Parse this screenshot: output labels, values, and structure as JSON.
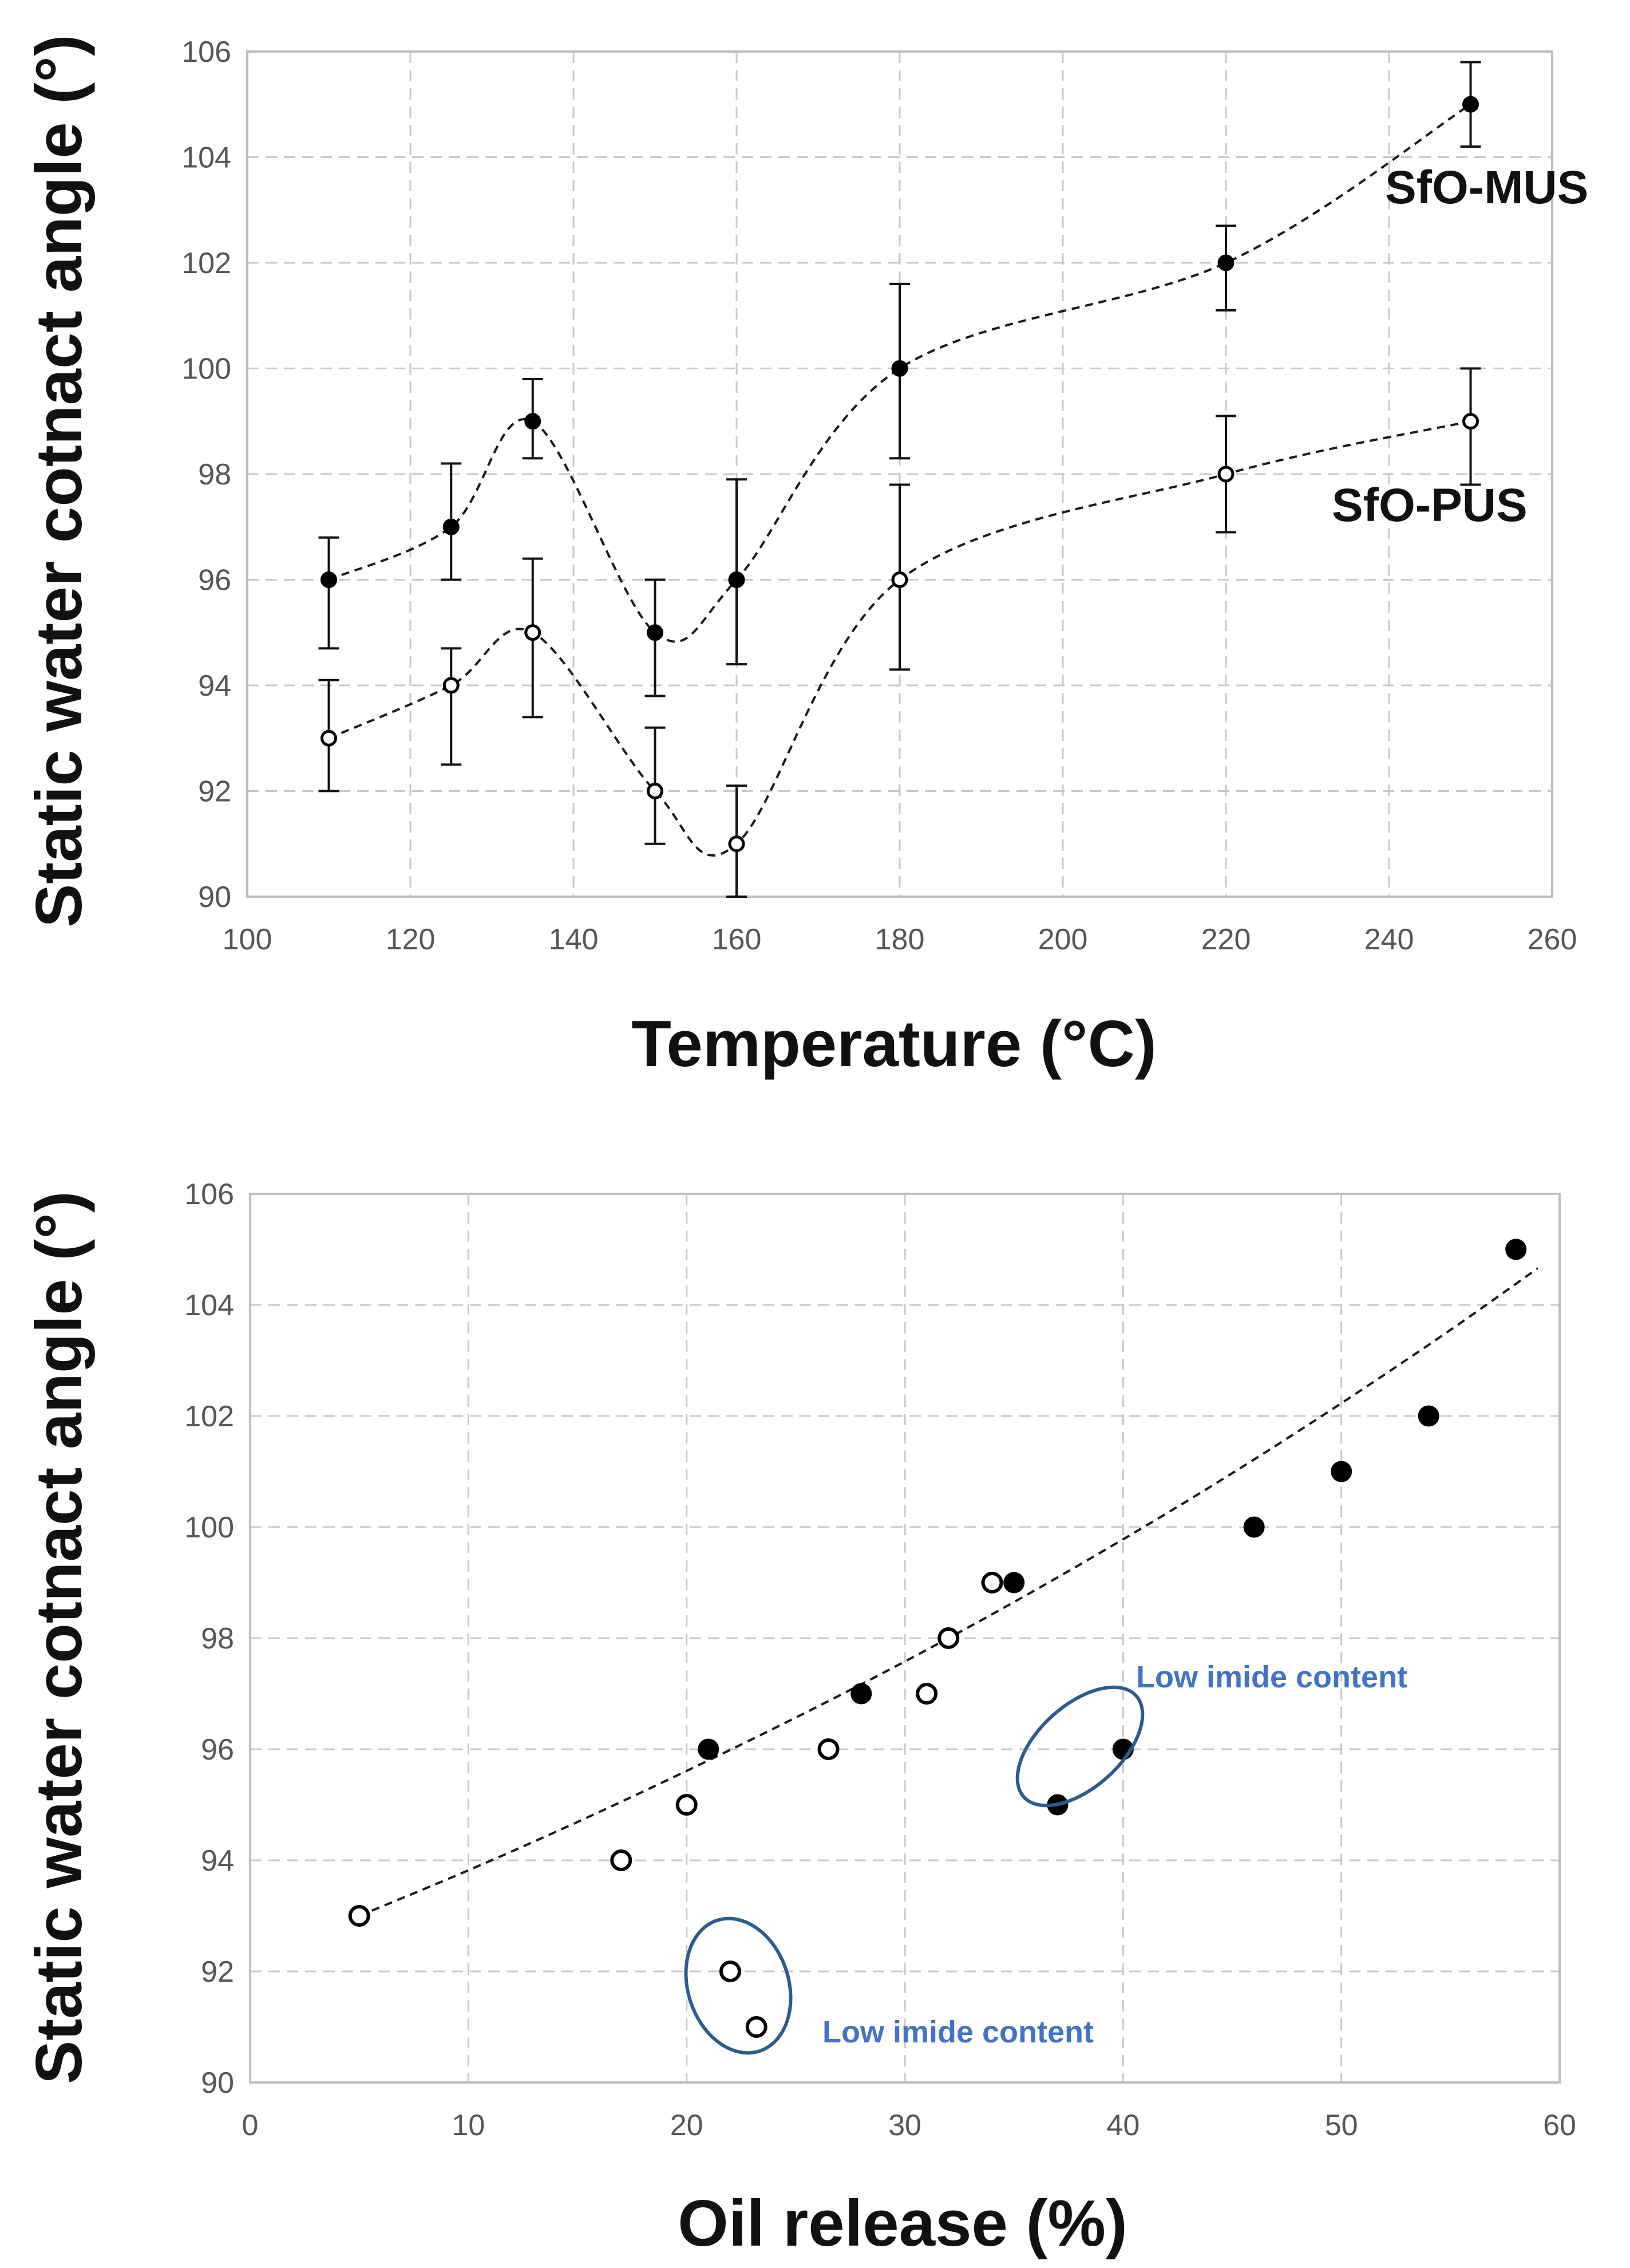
{
  "chart_data": [
    {
      "type": "line",
      "xlabel": "Temperature (°C)",
      "ylabel": "Static water cotnact angle (°)",
      "xlim": [
        100,
        260
      ],
      "ylim": [
        90,
        106
      ],
      "xticks": [
        100,
        120,
        140,
        160,
        180,
        200,
        220,
        240,
        260
      ],
      "yticks": [
        90,
        92,
        94,
        96,
        98,
        100,
        102,
        104,
        106
      ],
      "grid": true,
      "x": [
        110,
        125,
        135,
        150,
        160,
        180,
        220,
        250
      ],
      "series": [
        {
          "name": "SfO-MUS",
          "marker": "filled",
          "values": [
            96,
            97,
            99,
            95,
            96,
            100,
            102,
            105
          ],
          "error_low": [
            94.7,
            96.0,
            98.3,
            93.8,
            94.4,
            98.3,
            101.1,
            104.2
          ],
          "error_high": [
            96.8,
            98.2,
            99.8,
            96.0,
            97.9,
            101.6,
            102.7,
            105.8
          ]
        },
        {
          "name": "SfO-PUS",
          "marker": "open",
          "values": [
            93,
            94,
            95,
            92,
            91,
            96,
            98,
            99
          ],
          "error_low": [
            92.0,
            92.5,
            93.4,
            91.0,
            90.0,
            94.3,
            96.9,
            97.8
          ],
          "error_high": [
            94.1,
            94.7,
            96.4,
            93.2,
            92.1,
            97.8,
            99.1,
            100.0
          ]
        }
      ],
      "series_labels": [
        "SfO-MUS",
        "SfO-PUS"
      ]
    },
    {
      "type": "scatter",
      "xlabel": "Oil release (%)",
      "ylabel": "Static water cotnact angle (°)",
      "xlim": [
        0,
        60
      ],
      "ylim": [
        90,
        106
      ],
      "xticks": [
        0,
        10,
        20,
        30,
        40,
        50,
        60
      ],
      "yticks": [
        90,
        92,
        94,
        96,
        98,
        100,
        102,
        104,
        106
      ],
      "grid": true,
      "series": [
        {
          "name": "SfO-MUS",
          "marker": "filled",
          "x": [
            21,
            28,
            35,
            37,
            40,
            46,
            50,
            54,
            58
          ],
          "y": [
            96,
            97,
            99,
            95,
            96,
            100,
            101,
            102,
            105
          ]
        },
        {
          "name": "SfO-PUS",
          "marker": "open",
          "x": [
            5,
            17,
            20,
            22,
            23.2,
            26.5,
            31,
            32,
            34
          ],
          "y": [
            93,
            94,
            95,
            92,
            91,
            96,
            97,
            98,
            99
          ]
        }
      ],
      "trendline": {
        "style": "dashed",
        "x": [
          5,
          10,
          15,
          20,
          25,
          30,
          35,
          40,
          45,
          50,
          55,
          59
        ],
        "y": [
          93,
          93.82,
          94.69,
          95.61,
          96.57,
          97.58,
          98.65,
          99.78,
          100.97,
          102.23,
          103.55,
          104.66
        ]
      },
      "annotations": [
        {
          "text": "Low imide content",
          "target": "SfO-MUS points at 37 %, 95° and 40 %, 96°",
          "color": "#4472C4"
        },
        {
          "text": "Low imide content",
          "target": "SfO-PUS points at 22 %, 92° and 23.2 %, 91°",
          "color": "#4472C4"
        }
      ]
    }
  ]
}
